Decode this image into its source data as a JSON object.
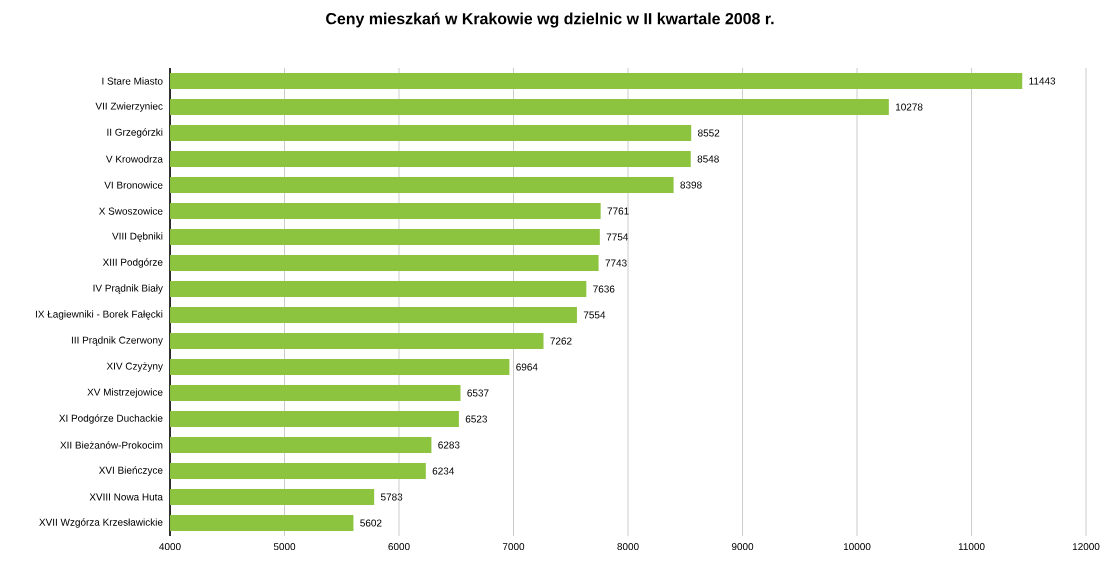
{
  "chart_data": {
    "type": "bar",
    "orientation": "horizontal",
    "title": "Ceny mieszkań w Krakowie wg dzielnic w II kwartale 2008 r.",
    "categories": [
      "I Stare Miasto",
      "VII Zwierzyniec",
      "II Grzegórzki",
      "V Krowodrza",
      "VI Bronowice",
      "X Swoszowice",
      "VIII Dębniki",
      "XIII Podgórze",
      "IV Prądnik Biały",
      "IX Łagiewniki - Borek Fałęcki",
      "III Prądnik Czerwony",
      "XIV Czyżyny",
      "XV Mistrzejowice",
      "XI Podgórze Duchackie",
      "XII Bieżanów-Prokocim",
      "XVI Bieńczyce",
      "XVIII Nowa Huta",
      "XVII Wzgórza Krzesławickie"
    ],
    "values": [
      11443,
      10278,
      8552,
      8548,
      8398,
      7761,
      7754,
      7743,
      7636,
      7554,
      7262,
      6964,
      6537,
      6523,
      6283,
      6234,
      5783,
      5602
    ],
    "color": "#8cc43f",
    "data_labels": true,
    "grid": "x",
    "xlim": [
      4000,
      12000
    ],
    "xticks": [
      4000,
      5000,
      6000,
      7000,
      8000,
      9000,
      10000,
      11000,
      12000
    ]
  }
}
